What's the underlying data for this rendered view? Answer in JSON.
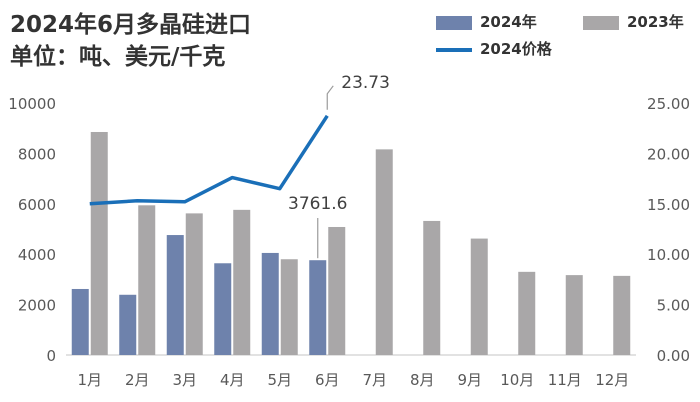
{
  "title_line1": "2024年6月多晶硅进口",
  "title_line2": "单位：吨、美元/千克",
  "colors": {
    "bar_2024": "#6E82AC",
    "bar_2023": "#A9A7A8",
    "line_price": "#1A6FB8",
    "axis": "#D9D9D9",
    "text": "#595959"
  },
  "chart_data": {
    "type": "bar",
    "categories": [
      "1月",
      "2月",
      "3月",
      "4月",
      "5月",
      "6月",
      "7月",
      "8月",
      "9月",
      "10月",
      "11月",
      "12月"
    ],
    "series": [
      {
        "name": "2024年",
        "type": "bar",
        "axis": "left",
        "values": [
          2620,
          2390,
          4760,
          3640,
          4050,
          3761.6,
          null,
          null,
          null,
          null,
          null,
          null
        ]
      },
      {
        "name": "2023年",
        "type": "bar",
        "axis": "left",
        "values": [
          8850,
          5940,
          5620,
          5760,
          3800,
          5080,
          8160,
          5320,
          4620,
          3300,
          3170,
          3140
        ]
      },
      {
        "name": "2024价格",
        "type": "line",
        "axis": "right",
        "values": [
          15.0,
          15.3,
          15.2,
          17.6,
          16.5,
          23.73,
          null,
          null,
          null,
          null,
          null,
          null
        ]
      }
    ],
    "y_left": {
      "min": 0,
      "max": 10000,
      "ticks": [
        "0",
        "2000",
        "4000",
        "6000",
        "8000",
        "10000"
      ]
    },
    "y_right": {
      "min": 0,
      "max": 25,
      "ticks": [
        "0.00",
        "5.00",
        "10.00",
        "15.00",
        "20.00",
        "25.00"
      ]
    },
    "annotations": [
      {
        "text": "23.73",
        "series": "2024价格",
        "category": "6月"
      },
      {
        "text": "3761.6",
        "series": "2024年",
        "category": "6月"
      }
    ],
    "legend": "top-right",
    "grid": false
  }
}
